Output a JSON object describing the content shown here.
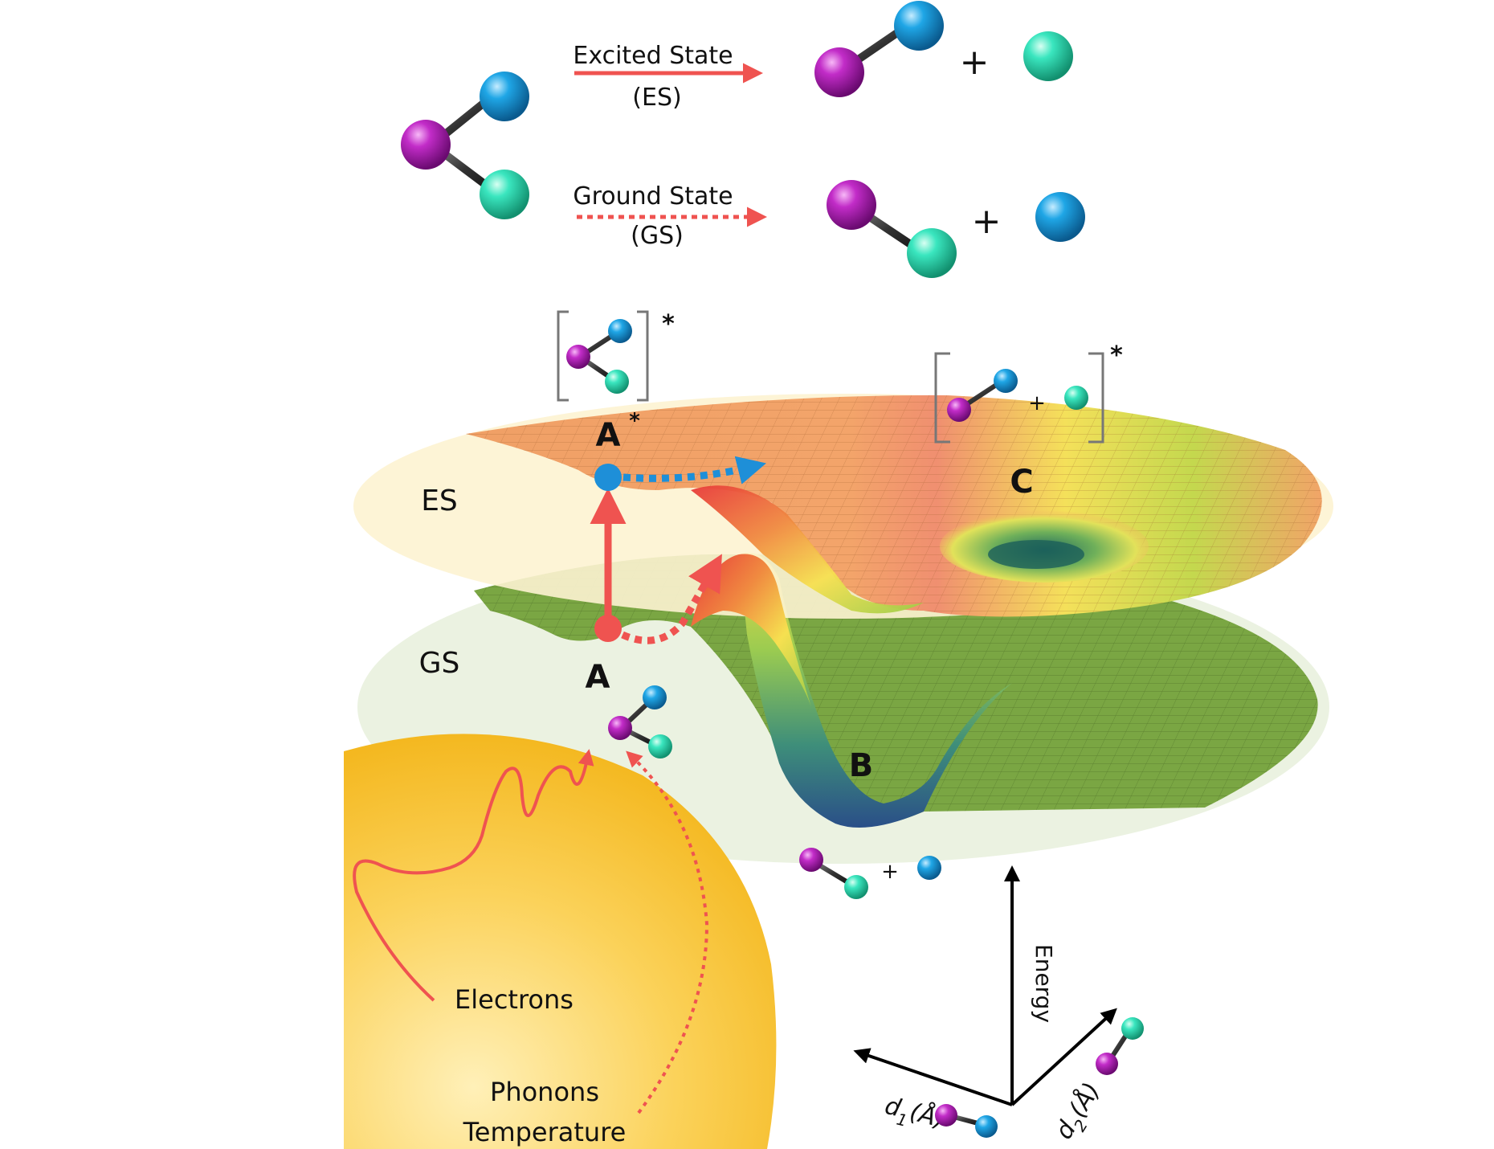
{
  "reactions": {
    "es_label": "Excited State",
    "es_abbrev": "(ES)",
    "gs_label": "Ground State",
    "gs_abbrev": "(GS)",
    "plus": "+"
  },
  "surfaces": {
    "es_label": "ES",
    "gs_label": "GS",
    "point_a": "A",
    "point_a_star": "A",
    "point_b": "B",
    "point_c": "C",
    "star": "*",
    "plus": "+"
  },
  "particle": {
    "electrons": "Electrons",
    "phonons": "Phonons",
    "temperature": "Temperature"
  },
  "axes": {
    "energy": "Energy",
    "d1": "d",
    "d1_sub": "1",
    "d1_unit": "(Å)",
    "d2": "d",
    "d2_sub": "2",
    "d2_unit": "(Å)"
  },
  "colors": {
    "arrow_red": "#ef5350",
    "arrow_blue": "#1e8fd8",
    "atom_magenta": "#b010b8",
    "atom_blue": "#1aa3e0",
    "atom_teal": "#2fe0b8",
    "es_surface": "#f0a068",
    "gs_surface": "#79a640",
    "particle_gold": "#f7c63a"
  }
}
